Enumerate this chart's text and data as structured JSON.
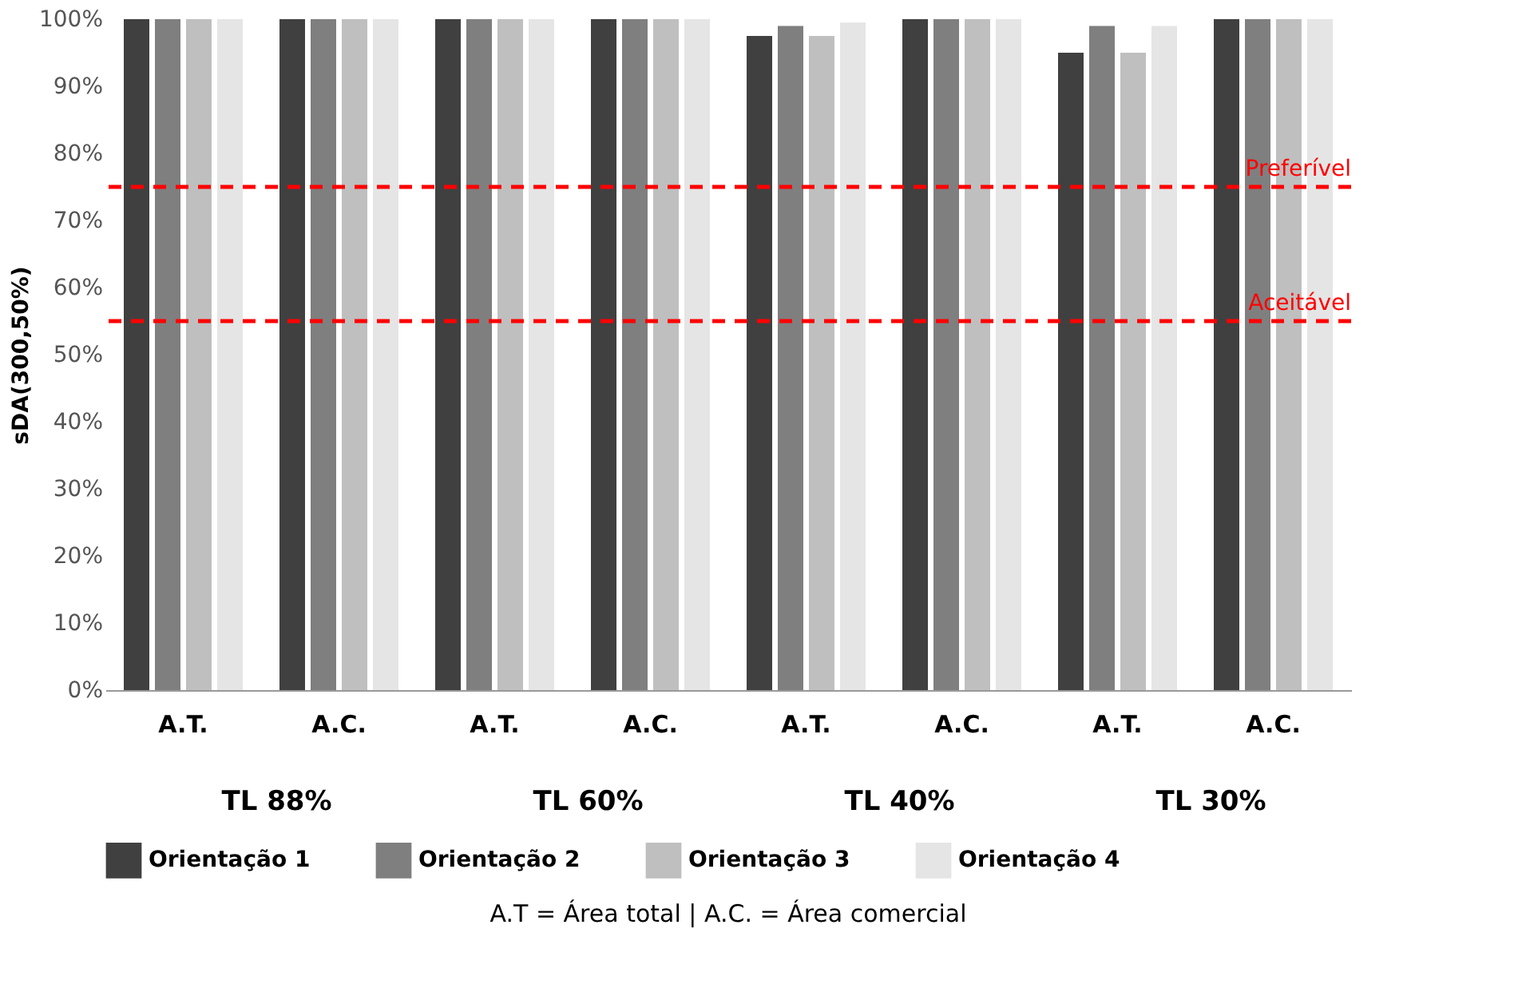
{
  "chart_data": {
    "type": "bar",
    "ylabel": "sDA(300,50%)",
    "categories": [
      "A.T.",
      "A.C.",
      "A.T.",
      "A.C.",
      "A.T.",
      "A.C.",
      "A.T.",
      "A.C."
    ],
    "series": [
      {
        "name": "Orientação 1",
        "color": "#404040",
        "values": [
          100,
          100,
          100,
          100,
          97.5,
          100,
          95,
          100
        ]
      },
      {
        "name": "Orientação 2",
        "color": "#7f7f7f",
        "values": [
          100,
          100,
          100,
          100,
          99,
          100,
          99,
          100
        ]
      },
      {
        "name": "Orientação 3",
        "color": "#bfbfbf",
        "values": [
          100,
          100,
          100,
          100,
          97.5,
          100,
          95,
          100
        ]
      },
      {
        "name": "Orientação 4",
        "color": "#e5e5e5",
        "values": [
          100,
          100,
          100,
          100,
          99.5,
          100,
          99,
          100
        ]
      }
    ],
    "ylim": [
      0,
      100
    ],
    "yticks": [
      {
        "value": 0,
        "label": "0%"
      },
      {
        "value": 10,
        "label": "10%"
      },
      {
        "value": 20,
        "label": "20%"
      },
      {
        "value": 30,
        "label": "30%"
      },
      {
        "value": 40,
        "label": "40%"
      },
      {
        "value": 50,
        "label": "50%"
      },
      {
        "value": 60,
        "label": "60%"
      },
      {
        "value": 70,
        "label": "70%"
      },
      {
        "value": 80,
        "label": "80%"
      },
      {
        "value": 90,
        "label": "90%"
      },
      {
        "value": 100,
        "label": "100%"
      }
    ],
    "ref_lines": [
      {
        "axis": "y",
        "value": 75,
        "label": "Preferível",
        "color": "#ff0000",
        "line_style": "dashed"
      },
      {
        "axis": "y",
        "value": 55,
        "label": "Aceitável",
        "color": "#ff0000",
        "line_style": "dashed"
      }
    ],
    "annotations": [
      "TL 88%",
      "TL 60%",
      "TL 40%",
      "TL 30%",
      "A.T = Área total | A.C. = Área comercial"
    ],
    "legend": "bottom"
  }
}
